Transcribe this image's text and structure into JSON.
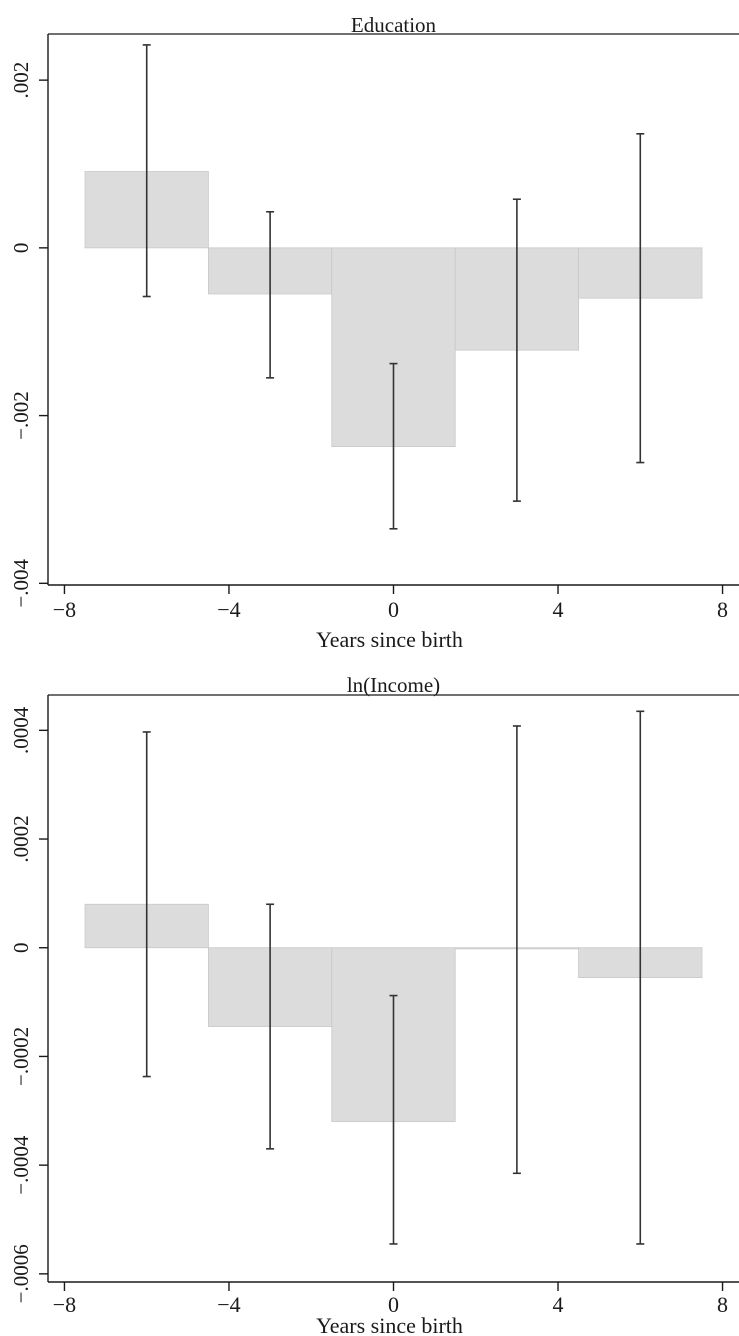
{
  "chart_data": [
    {
      "type": "bar",
      "title": "Education",
      "xlabel": "Years since birth",
      "ylabel": "",
      "xlim": [
        -8.4,
        8.4
      ],
      "ylim": [
        -0.00402,
        0.00255
      ],
      "xticks": [
        -8,
        -4,
        0,
        4,
        8
      ],
      "xtick_labels": [
        "−8",
        "−4",
        "0",
        "4",
        "8"
      ],
      "yticks": [
        -0.004,
        -0.002,
        0,
        0.002
      ],
      "ytick_labels": [
        "−.004",
        "−.002",
        "0",
        ".002"
      ],
      "bin_width": 3,
      "x": [
        -6,
        -3,
        0,
        3,
        6
      ],
      "values": [
        0.00091,
        -0.00055,
        -0.00237,
        -0.00122,
        -0.0006
      ],
      "ci_lower": [
        -0.00058,
        -0.00155,
        -0.00335,
        -0.00302,
        -0.00256
      ],
      "ci_upper": [
        0.00242,
        0.00043,
        -0.00138,
        0.00058,
        0.00136
      ],
      "grid": false,
      "colors": {
        "bar": "#dcdcdc",
        "bar_edge": "#c8c8c8",
        "error_bar": "#333333",
        "axis": "#1a1a1a"
      }
    },
    {
      "type": "bar",
      "title": "ln(Income)",
      "xlabel": "Years since birth",
      "ylabel": "",
      "xlim": [
        -8.4,
        8.4
      ],
      "ylim": [
        -0.000615,
        0.000465
      ],
      "xticks": [
        -8,
        -4,
        0,
        4,
        8
      ],
      "xtick_labels": [
        "−8",
        "−4",
        "0",
        "4",
        "8"
      ],
      "yticks": [
        -0.0006,
        -0.0004,
        -0.0002,
        0,
        0.0002,
        0.0004
      ],
      "ytick_labels": [
        "−.0006",
        "−.0004",
        "−.0002",
        "0",
        ".0002",
        ".0004"
      ],
      "bin_width": 3,
      "x": [
        -6,
        -3,
        0,
        3,
        6
      ],
      "values": [
        8e-05,
        -0.000145,
        -0.00032,
        -2e-06,
        -5.5e-05
      ],
      "ci_lower": [
        -0.000237,
        -0.00037,
        -0.000545,
        -0.000415,
        -0.000545
      ],
      "ci_upper": [
        0.000397,
        8e-05,
        -8.8e-05,
        0.000408,
        0.000435
      ],
      "grid": false,
      "colors": {
        "bar": "#dcdcdc",
        "bar_edge": "#c8c8c8",
        "error_bar": "#333333",
        "axis": "#1a1a1a"
      }
    }
  ]
}
